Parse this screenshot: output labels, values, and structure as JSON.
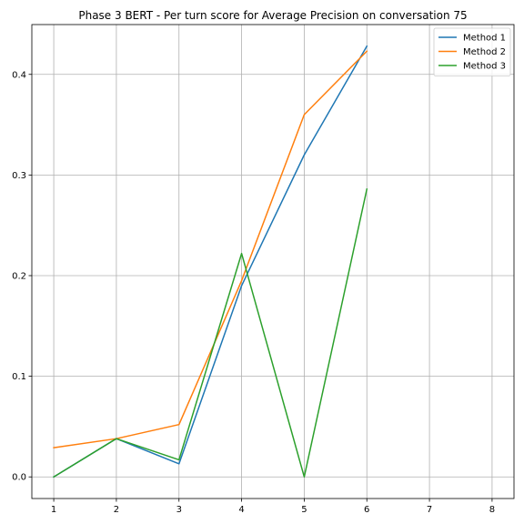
{
  "chart_data": {
    "type": "line",
    "title": "Phase 3 BERT - Per turn score for Average Precision on conversation 75",
    "xlabel": "",
    "ylabel": "",
    "x": [
      1,
      2,
      3,
      4,
      5,
      6
    ],
    "xlim": [
      0.65,
      8.35
    ],
    "ylim": [
      -0.0215,
      0.4495
    ],
    "xticks": [
      1,
      2,
      3,
      4,
      5,
      6,
      7,
      8
    ],
    "yticks": [
      0.0,
      0.1,
      0.2,
      0.3,
      0.4
    ],
    "grid": true,
    "legend_position": "top-right",
    "series": [
      {
        "name": "Method 1",
        "color": "#1f77b4",
        "values": [
          0.0,
          0.038,
          0.013,
          0.19,
          0.32,
          0.428
        ]
      },
      {
        "name": "Method 2",
        "color": "#ff7f0e",
        "values": [
          0.029,
          0.038,
          0.052,
          0.195,
          0.36,
          0.423
        ]
      },
      {
        "name": "Method 3",
        "color": "#2ca02c",
        "values": [
          0.0,
          0.038,
          0.017,
          0.222,
          0.0,
          0.286
        ]
      }
    ]
  }
}
